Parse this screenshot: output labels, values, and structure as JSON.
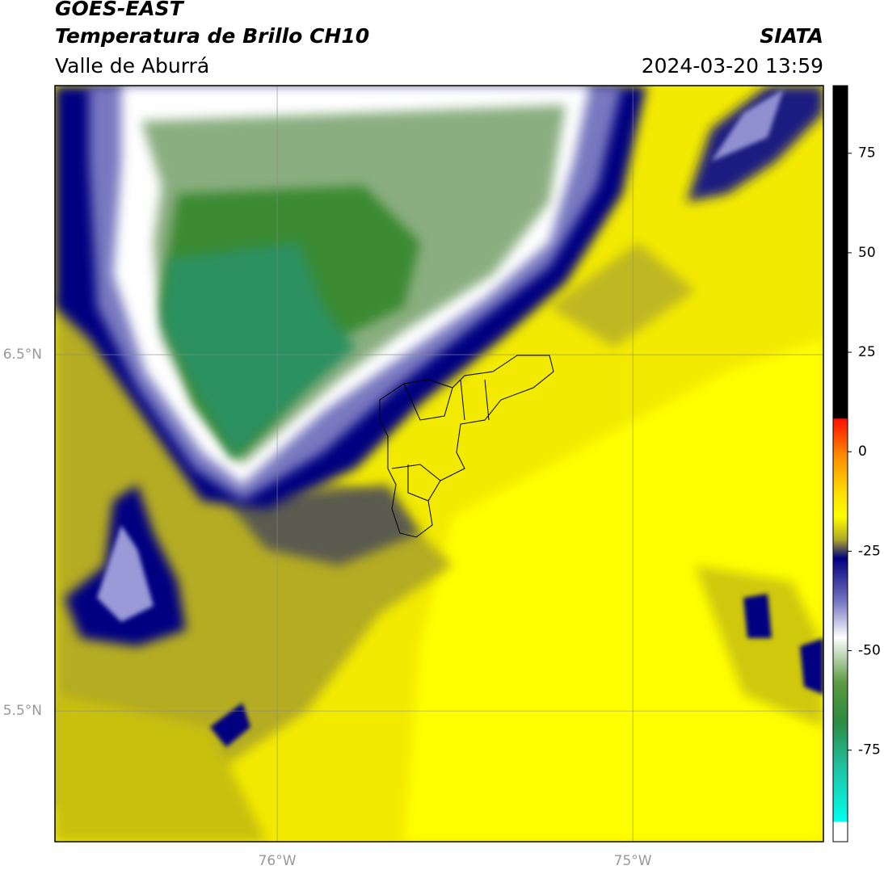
{
  "header": {
    "line1": "GOES-EAST",
    "line2": "Temperatura de Brillo CH10",
    "region": "Valle de Aburrá",
    "source": "SIATA",
    "datetime": "2024-03-20 13:59"
  },
  "map": {
    "xlim": [
      -76.625,
      -74.464
    ],
    "ylim": [
      5.133,
      7.255
    ],
    "xticks": [
      {
        "value": -76,
        "label": "76°W"
      },
      {
        "value": -75,
        "label": "75°W"
      }
    ],
    "yticks": [
      {
        "value": 6.5,
        "label": "6.5°N"
      },
      {
        "value": 5.5,
        "label": "5.5°N"
      }
    ],
    "grid": true
  },
  "colorbar": {
    "lim": [
      -98,
      92
    ],
    "ticks": [
      75,
      50,
      25,
      0,
      -25,
      -50,
      -75
    ]
  }
}
